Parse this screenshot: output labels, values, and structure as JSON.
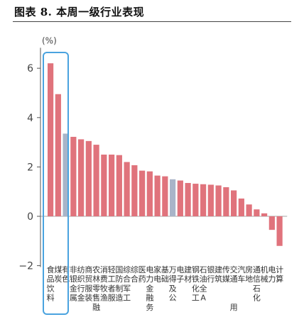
{
  "figure": {
    "title": "图表 8. 本周一级行业表现"
  },
  "chart_data": {
    "type": "bar",
    "ylabel": "(%)",
    "ylim": [
      -2,
      7
    ],
    "yticks": [
      -2,
      0,
      2,
      4,
      6
    ],
    "categories": [
      "食品饮料",
      "煤炭",
      "有色金属",
      "非银行金融",
      "纺织服装",
      "商贸零售",
      "农林牧渔",
      "消费者服务",
      "轻工制造",
      "国防军工",
      "综合",
      "综合金融",
      "医药",
      "电力及公用事业",
      "家电",
      "基础化工",
      "万得全A",
      "电子",
      "建材",
      "钢铁",
      "石油石化",
      "银行",
      "建筑",
      "传媒",
      "交通运输",
      "汽车",
      "房地产",
      "通信",
      "机械",
      "电力设备",
      "计算机"
    ],
    "values": [
      6.2,
      4.95,
      3.35,
      3.22,
      3.12,
      3.05,
      2.9,
      2.5,
      2.5,
      2.48,
      2.2,
      2.07,
      1.85,
      1.82,
      1.65,
      1.62,
      1.5,
      1.45,
      1.35,
      1.32,
      1.3,
      1.28,
      1.25,
      1.18,
      1.05,
      0.72,
      0.48,
      0.28,
      0.12,
      -0.55,
      -1.2
    ],
    "highlight_gray": [
      "有色金属",
      "万得全A"
    ],
    "label_rows": [
      "食煤有非纺商农消轻国综综医电家基万电建钢石银建传交汽房通机电计",
      "品炭色银织贸林费工防合合药力电础得子材铁油行筑媒通车地信械力算",
      "饮  金行服零牧者制军  金  及  化全      石      运  产    设机",
      "料  属金装售渔服造工  融  公  工A      化      输        备  ",
      "      融      务          用                              "
    ],
    "colors": {
      "bar": "#e0737c",
      "highlight": "#a9b4c8",
      "box": "#4aa3df",
      "axis": "#555555"
    }
  }
}
